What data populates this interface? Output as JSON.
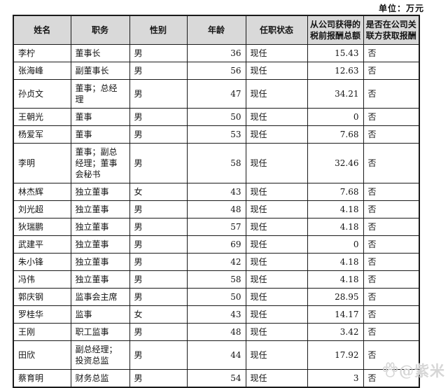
{
  "unit_label": "单位：万元",
  "colors": {
    "header_bg": "#d9d9d9",
    "border": "#1a1a1a",
    "watermark": "#d6d6d6"
  },
  "watermark": {
    "icon": "baidu-paw",
    "text": "@紫米"
  },
  "table": {
    "headers": [
      "姓名",
      "职务",
      "性别",
      "年龄",
      "任职状态",
      "从公司获得的税前报酬总额",
      "是否在公司关联方获取报酬"
    ],
    "rows": [
      {
        "name": "李柠",
        "position": "董事长",
        "gender": "男",
        "age": "36",
        "status": "现任",
        "compensation": "15.43",
        "related": "否"
      },
      {
        "name": "张海峰",
        "position": "副董事长",
        "gender": "男",
        "age": "56",
        "status": "现任",
        "compensation": "12.63",
        "related": "否"
      },
      {
        "name": "孙贞文",
        "position": "董事；总经理",
        "gender": "男",
        "age": "47",
        "status": "现任",
        "compensation": "34.21",
        "related": "否"
      },
      {
        "name": "王朝光",
        "position": "董事",
        "gender": "男",
        "age": "50",
        "status": "现任",
        "compensation": "0",
        "related": "否"
      },
      {
        "name": "杨爱军",
        "position": "董事",
        "gender": "男",
        "age": "53",
        "status": "现任",
        "compensation": "7.68",
        "related": "否"
      },
      {
        "name": "李明",
        "position": "董事；副总经理；董事会秘书",
        "gender": "男",
        "age": "58",
        "status": "现任",
        "compensation": "32.46",
        "related": "否"
      },
      {
        "name": "林杰辉",
        "position": "独立董事",
        "gender": "女",
        "age": "43",
        "status": "现任",
        "compensation": "7.68",
        "related": "否"
      },
      {
        "name": "刘光超",
        "position": "独立董事",
        "gender": "男",
        "age": "48",
        "status": "现任",
        "compensation": "4.18",
        "related": "否"
      },
      {
        "name": "狄瑞鹏",
        "position": "独立董事",
        "gender": "男",
        "age": "57",
        "status": "现任",
        "compensation": "4.18",
        "related": "否"
      },
      {
        "name": "武建平",
        "position": "独立董事",
        "gender": "男",
        "age": "69",
        "status": "现任",
        "compensation": "0",
        "related": "否"
      },
      {
        "name": "朱小锋",
        "position": "独立董事",
        "gender": "男",
        "age": "42",
        "status": "现任",
        "compensation": "4.18",
        "related": "否"
      },
      {
        "name": "冯伟",
        "position": "独立董事",
        "gender": "男",
        "age": "58",
        "status": "现任",
        "compensation": "4.18",
        "related": "否"
      },
      {
        "name": "郭庆钢",
        "position": "监事会主席",
        "gender": "男",
        "age": "50",
        "status": "现任",
        "compensation": "28.95",
        "related": "否"
      },
      {
        "name": "罗桂华",
        "position": "监事",
        "gender": "女",
        "age": "43",
        "status": "现任",
        "compensation": "14.17",
        "related": "否"
      },
      {
        "name": "王刚",
        "position": "职工监事",
        "gender": "男",
        "age": "48",
        "status": "现任",
        "compensation": "3.42",
        "related": "否"
      },
      {
        "name": "田欣",
        "position": "副总经理；投资总监",
        "gender": "男",
        "age": "44",
        "status": "现任",
        "compensation": "17.92",
        "related": "否"
      },
      {
        "name": "蔡育明",
        "position": "财务总监",
        "gender": "男",
        "age": "54",
        "status": "现任",
        "compensation": "3",
        "related": "否"
      }
    ]
  }
}
